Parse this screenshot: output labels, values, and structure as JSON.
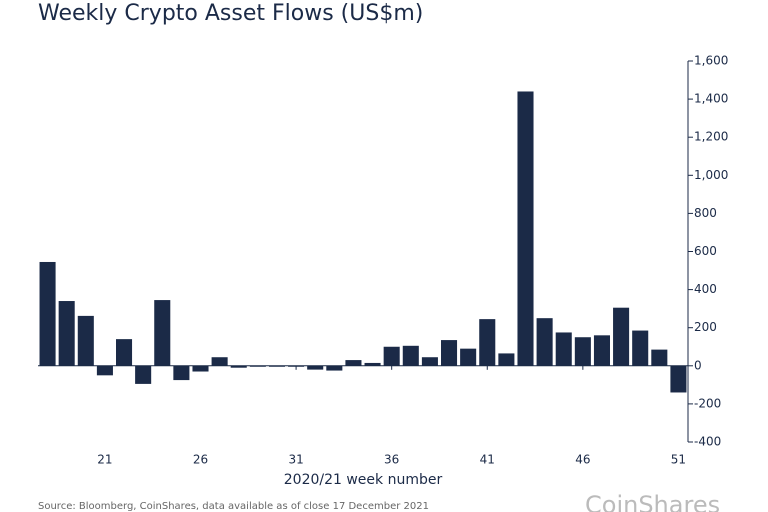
{
  "chart_data": {
    "type": "bar",
    "title": "Weekly Crypto Asset Flows (US$m)",
    "x_label": "2020/21 week number",
    "source": "Source: Bloomberg, CoinShares, data available as of close 17 December 2021",
    "logo": "CoinShares",
    "color": "#1b2a47",
    "x": [
      18,
      19,
      20,
      21,
      22,
      23,
      24,
      25,
      26,
      27,
      28,
      29,
      30,
      31,
      32,
      33,
      34,
      35,
      36,
      37,
      38,
      39,
      40,
      41,
      42,
      43,
      44,
      45,
      46,
      47,
      48,
      49,
      50,
      51
    ],
    "values": [
      545,
      340,
      262,
      -50,
      140,
      -95,
      345,
      -75,
      -30,
      45,
      -10,
      -5,
      -5,
      -5,
      -20,
      -25,
      30,
      15,
      100,
      105,
      45,
      135,
      90,
      245,
      65,
      1440,
      250,
      175,
      150,
      160,
      305,
      185,
      85,
      -140
    ],
    "xlim": [
      17.5,
      51.5
    ],
    "xticks": [
      21,
      26,
      31,
      36,
      41,
      46,
      51
    ],
    "ylim": [
      -400,
      1600
    ],
    "yticks": [
      -400,
      -200,
      0,
      200,
      400,
      600,
      800,
      {
        "value": 1000,
        "label": "1,000"
      },
      {
        "value": 1200,
        "label": "1,200"
      },
      {
        "value": 1400,
        "label": "1,400"
      },
      {
        "value": 1600,
        "label": "1,600"
      }
    ]
  }
}
